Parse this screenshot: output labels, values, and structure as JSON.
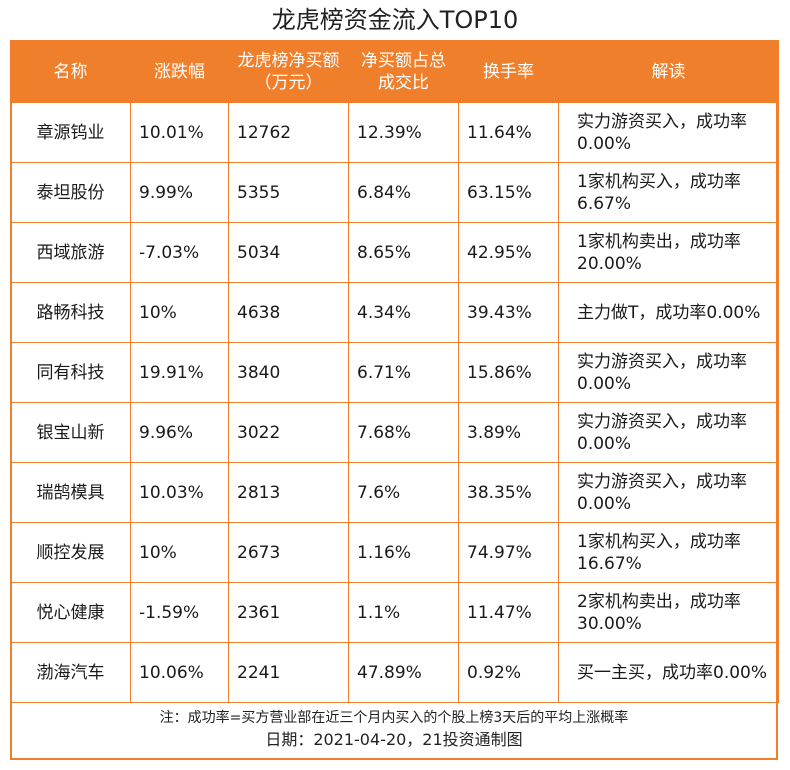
{
  "title": "龙虎榜资金流入TOP10",
  "columns": [
    "名称",
    "涨跌幅",
    "龙虎榜净买额（万元）",
    "净买额占总成交比",
    "换手率",
    "解读"
  ],
  "rows": [
    {
      "name": "章源钨业",
      "change": "10.01%",
      "net_buy": "12762",
      "ratio": "12.39%",
      "turnover": "11.64%",
      "note": "实力游资买入，成功率0.00%"
    },
    {
      "name": "泰坦股份",
      "change": "9.99%",
      "net_buy": "5355",
      "ratio": "6.84%",
      "turnover": "63.15%",
      "note": "1家机构买入，成功率6.67%"
    },
    {
      "name": "西域旅游",
      "change": "-7.03%",
      "net_buy": "5034",
      "ratio": "8.65%",
      "turnover": "42.95%",
      "note": "1家机构卖出，成功率20.00%"
    },
    {
      "name": "路畅科技",
      "change": "10%",
      "net_buy": "4638",
      "ratio": "4.34%",
      "turnover": "39.43%",
      "note": "主力做T，成功率0.00%"
    },
    {
      "name": "同有科技",
      "change": "19.91%",
      "net_buy": "3840",
      "ratio": "6.71%",
      "turnover": "15.86%",
      "note": "实力游资买入，成功率0.00%"
    },
    {
      "name": "银宝山新",
      "change": "9.96%",
      "net_buy": "3022",
      "ratio": "7.68%",
      "turnover": "3.89%",
      "note": "实力游资买入，成功率0.00%"
    },
    {
      "name": "瑞鹄模具",
      "change": "10.03%",
      "net_buy": "2813",
      "ratio": "7.6%",
      "turnover": "38.35%",
      "note": "实力游资买入，成功率0.00%"
    },
    {
      "name": "顺控发展",
      "change": "10%",
      "net_buy": "2673",
      "ratio": "1.16%",
      "turnover": "74.97%",
      "note": "1家机构买入，成功率16.67%"
    },
    {
      "name": "悦心健康",
      "change": "-1.59%",
      "net_buy": "2361",
      "ratio": "1.1%",
      "turnover": "11.47%",
      "note": "2家机构卖出，成功率30.00%"
    },
    {
      "name": "渤海汽车",
      "change": "10.06%",
      "net_buy": "2241",
      "ratio": "47.89%",
      "turnover": "0.92%",
      "note": "买一主买，成功率0.00%"
    }
  ],
  "footnote": "注：成功率=买方营业部在近三个月内买入的个股上榜3天后的平均上涨概率",
  "date_line": "日期：2021-04-20，21投资通制图",
  "colors": {
    "accent": "#f07f2c"
  }
}
